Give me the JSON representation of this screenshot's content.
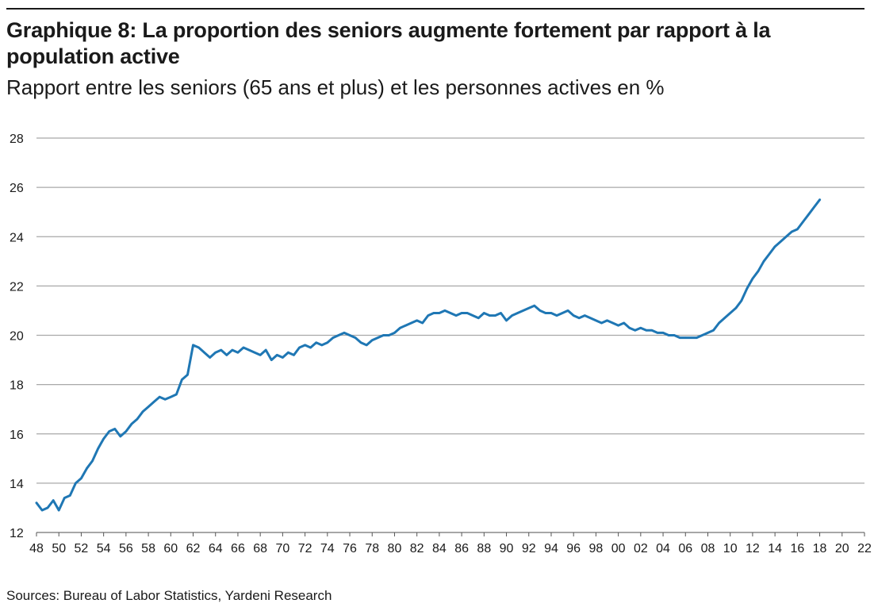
{
  "header": {
    "title": "Graphique 8: La proportion des seniors augmente fortement par rapport à la population active",
    "subtitle": "Rapport entre les seniors (65 ans et plus) et les personnes actives en %"
  },
  "footer": {
    "source": "Sources: Bureau of Labor Statistics, Yardeni Research"
  },
  "chart_data": {
    "type": "line",
    "title": "Graphique 8: La proportion des seniors augmente fortement par rapport à la population active",
    "subtitle": "Rapport entre les seniors (65 ans et plus) et les personnes actives en %",
    "xlabel": "",
    "ylabel": "",
    "xlim": [
      1948,
      2022
    ],
    "ylim": [
      12,
      28
    ],
    "yticks": [
      12,
      14,
      16,
      18,
      20,
      22,
      24,
      26,
      28
    ],
    "xticks": [
      "48",
      "50",
      "52",
      "54",
      "56",
      "58",
      "60",
      "62",
      "64",
      "66",
      "68",
      "70",
      "72",
      "74",
      "76",
      "78",
      "80",
      "82",
      "84",
      "86",
      "88",
      "90",
      "92",
      "94",
      "96",
      "98",
      "00",
      "02",
      "04",
      "06",
      "08",
      "10",
      "12",
      "14",
      "16",
      "18",
      "20",
      "22"
    ],
    "grid": true,
    "line_color": "#1f77b4",
    "series": [
      {
        "x": [
          1948.0,
          1948.5,
          1949.0,
          1949.5,
          1950.0,
          1950.5,
          1951.0,
          1951.5,
          1952.0,
          1952.5,
          1953.0,
          1953.5,
          1954.0,
          1954.5,
          1955.0,
          1955.5,
          1956.0,
          1956.5,
          1957.0,
          1957.5,
          1958.0,
          1958.5,
          1959.0,
          1959.5,
          1960.0,
          1960.5,
          1961.0,
          1961.5,
          1962.0,
          1962.5,
          1963.0,
          1963.5,
          1964.0,
          1964.5,
          1965.0,
          1965.5,
          1966.0,
          1966.5,
          1967.0,
          1967.5,
          1968.0,
          1968.5,
          1969.0,
          1969.5,
          1970.0,
          1970.5,
          1971.0,
          1971.5,
          1972.0,
          1972.5,
          1973.0,
          1973.5,
          1974.0,
          1974.5,
          1975.0,
          1975.5,
          1976.0,
          1976.5,
          1977.0,
          1977.5,
          1978.0,
          1978.5,
          1979.0,
          1979.5,
          1980.0,
          1980.5,
          1981.0,
          1981.5,
          1982.0,
          1982.5,
          1983.0,
          1983.5,
          1984.0,
          1984.5,
          1985.0,
          1985.5,
          1986.0,
          1986.5,
          1987.0,
          1987.5,
          1988.0,
          1988.5,
          1989.0,
          1989.5,
          1990.0,
          1990.5,
          1991.0,
          1991.5,
          1992.0,
          1992.5,
          1993.0,
          1993.5,
          1994.0,
          1994.5,
          1995.0,
          1995.5,
          1996.0,
          1996.5,
          1997.0,
          1997.5,
          1998.0,
          1998.5,
          1999.0,
          1999.5,
          2000.0,
          2000.5,
          2001.0,
          2001.5,
          2002.0,
          2002.5,
          2003.0,
          2003.5,
          2004.0,
          2004.5,
          2005.0,
          2005.5,
          2006.0,
          2006.5,
          2007.0,
          2007.5,
          2008.0,
          2008.5,
          2009.0,
          2009.5,
          2010.0,
          2010.5,
          2011.0,
          2011.5,
          2012.0,
          2012.5,
          2013.0,
          2013.5,
          2014.0,
          2014.5,
          2015.0,
          2015.5,
          2016.0,
          2016.5,
          2017.0,
          2017.5,
          2018.0
        ],
        "y": [
          13.2,
          12.9,
          13.0,
          13.3,
          12.9,
          13.4,
          13.5,
          14.0,
          14.2,
          14.6,
          14.9,
          15.4,
          15.8,
          16.1,
          16.2,
          15.9,
          16.1,
          16.4,
          16.6,
          16.9,
          17.1,
          17.3,
          17.5,
          17.4,
          17.5,
          17.6,
          18.2,
          18.4,
          19.6,
          19.5,
          19.3,
          19.1,
          19.3,
          19.4,
          19.2,
          19.4,
          19.3,
          19.5,
          19.4,
          19.3,
          19.2,
          19.4,
          19.0,
          19.2,
          19.1,
          19.3,
          19.2,
          19.5,
          19.6,
          19.5,
          19.7,
          19.6,
          19.7,
          19.9,
          20.0,
          20.1,
          20.0,
          19.9,
          19.7,
          19.6,
          19.8,
          19.9,
          20.0,
          20.0,
          20.1,
          20.3,
          20.4,
          20.5,
          20.6,
          20.5,
          20.8,
          20.9,
          20.9,
          21.0,
          20.9,
          20.8,
          20.9,
          20.9,
          20.8,
          20.7,
          20.9,
          20.8,
          20.8,
          20.9,
          20.6,
          20.8,
          20.9,
          21.0,
          21.1,
          21.2,
          21.0,
          20.9,
          20.9,
          20.8,
          20.9,
          21.0,
          20.8,
          20.7,
          20.8,
          20.7,
          20.6,
          20.5,
          20.6,
          20.5,
          20.4,
          20.5,
          20.3,
          20.2,
          20.3,
          20.2,
          20.2,
          20.1,
          20.1,
          20.0,
          20.0,
          19.9,
          19.9,
          19.9,
          19.9,
          20.0,
          20.1,
          20.2,
          20.5,
          20.7,
          20.9,
          21.1,
          21.4,
          21.9,
          22.3,
          22.6,
          23.0,
          23.3,
          23.6,
          23.8,
          24.0,
          24.2,
          24.3,
          24.6,
          24.9,
          25.2,
          25.5
        ]
      }
    ]
  }
}
